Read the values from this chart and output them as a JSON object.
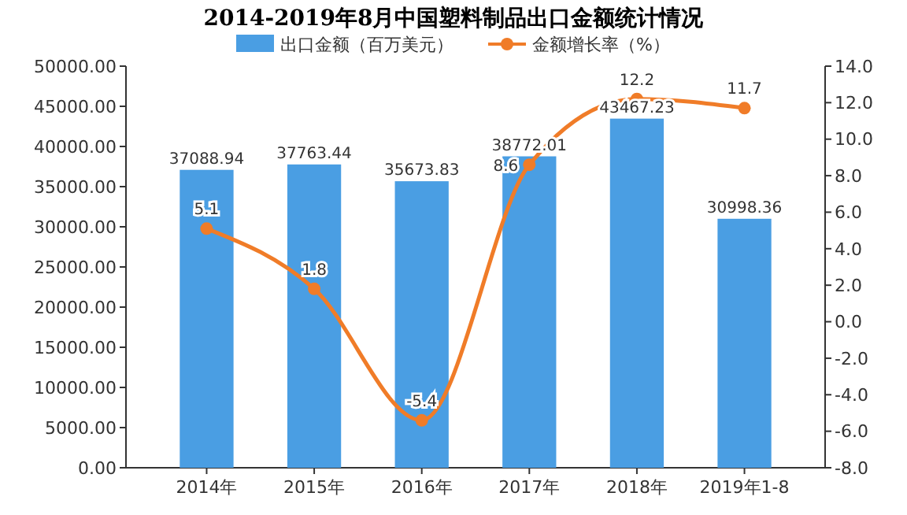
{
  "chart_data": {
    "type": "bar",
    "title": "2014-2019年8月中国塑料制品出口金额统计情况",
    "categories": [
      "2014年",
      "2015年",
      "2016年",
      "2017年",
      "2018年",
      "2019年1-8"
    ],
    "series": [
      {
        "name": "出口金额（百万美元）",
        "color": "#4a9ee3",
        "values": [
          37088.94,
          37763.44,
          35673.83,
          38772.01,
          43467.23,
          30998.36
        ]
      },
      {
        "name": "金额增长率（%）",
        "type": "line",
        "axis": "y2",
        "color": "#f07c28",
        "values": [
          5.1,
          1.8,
          -5.4,
          8.6,
          12.2,
          11.7
        ]
      }
    ],
    "ylim": [
      0,
      50000
    ],
    "yticks": [
      {
        "value": 0,
        "label": "0.00"
      },
      {
        "value": 5000,
        "label": "5000.00"
      },
      {
        "value": 10000,
        "label": "10000.00"
      },
      {
        "value": 15000,
        "label": "15000.00"
      },
      {
        "value": 20000,
        "label": "20000.00"
      },
      {
        "value": 25000,
        "label": "25000.00"
      },
      {
        "value": 30000,
        "label": "30000.00"
      },
      {
        "value": 35000,
        "label": "35000.00"
      },
      {
        "value": 40000,
        "label": "40000.00"
      },
      {
        "value": 45000,
        "label": "45000.00"
      },
      {
        "value": 50000,
        "label": "50000.00"
      }
    ],
    "y2lim": [
      -8,
      14
    ],
    "y2ticks": [
      {
        "value": -8,
        "label": "-8.0"
      },
      {
        "value": -6,
        "label": "-6.0"
      },
      {
        "value": -4,
        "label": "-4.0"
      },
      {
        "value": -2,
        "label": "-2.0"
      },
      {
        "value": 0,
        "label": "0.0"
      },
      {
        "value": 2,
        "label": "2.0"
      },
      {
        "value": 4,
        "label": "4.0"
      },
      {
        "value": 6,
        "label": "6.0"
      },
      {
        "value": 8,
        "label": "8.0"
      },
      {
        "value": 10,
        "label": "10.0"
      },
      {
        "value": 12,
        "label": "12.0"
      },
      {
        "value": 14,
        "label": "14.0"
      }
    ],
    "data_labels": true,
    "marker": "circle",
    "legend": "top",
    "grid": false
  }
}
